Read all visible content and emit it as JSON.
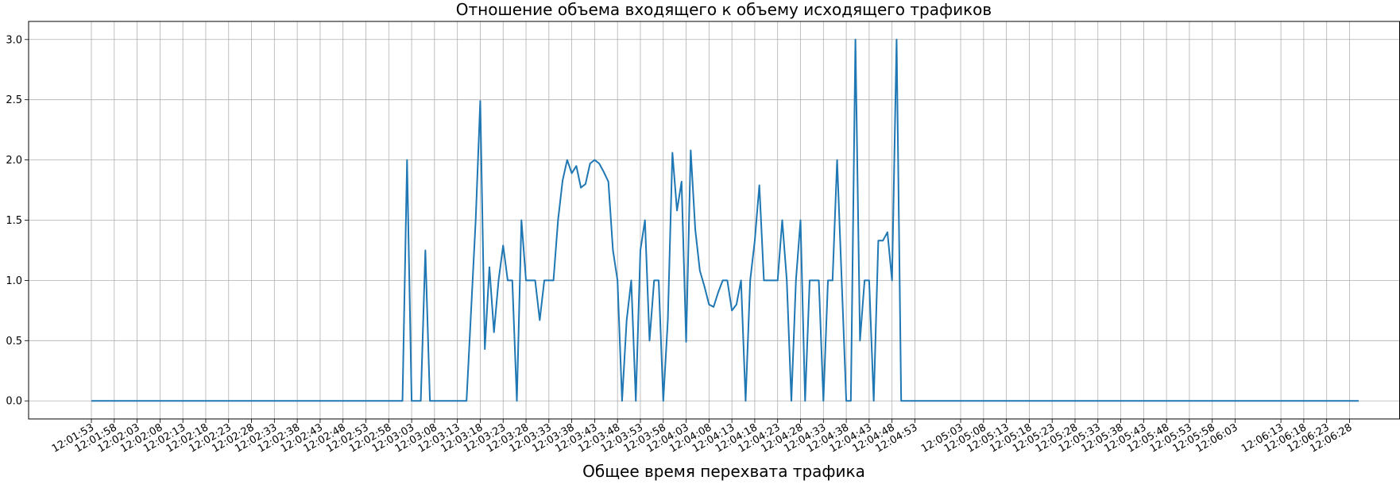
{
  "chart_data": {
    "type": "line",
    "title": "Отношение объема входящего к объему исходящего трафиков",
    "xlabel": "Общее время перехвата трафика",
    "ylabel": "",
    "ylim": [
      -0.15,
      3.15
    ],
    "yticks": [
      0.0,
      0.5,
      1.0,
      1.5,
      2.0,
      2.5,
      3.0
    ],
    "ytick_labels": [
      "0.0",
      "0.5",
      "1.0",
      "1.5",
      "2.0",
      "2.5",
      "3.0"
    ],
    "xtick_labels": [
      "12:01:53",
      "12:01:58",
      "12:02:03",
      "12:02:08",
      "12:02:13",
      "12:02:18",
      "12:02:23",
      "12:02:28",
      "12:02:33",
      "12:02:38",
      "12:02:43",
      "12:02:48",
      "12:02:53",
      "12:02:58",
      "12:03:03",
      "12:03:08",
      "12:03:13",
      "12:03:18",
      "12:03:23",
      "12:03:28",
      "12:03:33",
      "12:03:38",
      "12:03:43",
      "12:03:48",
      "12:03:53",
      "12:03:58",
      "12:04:03",
      "12:04:08",
      "12:04:13",
      "12:04:18",
      "12:04:23",
      "12:04:28",
      "12:04:33",
      "12:04:38",
      "12:04:43",
      "12:04:48",
      "12:04:53",
      "12:05:03",
      "12:05:08",
      "12:05:13",
      "12:05:18",
      "12:05:23",
      "12:05:28",
      "12:05:33",
      "12:05:38",
      "12:05:43",
      "12:05:48",
      "12:05:53",
      "12:05:58",
      "12:06:03",
      "12:06:13",
      "12:06:18",
      "12:06:23",
      "12:06:28"
    ],
    "grid": true,
    "line_color": "#1f77b4",
    "series": [
      {
        "x": [
          "12:01:53",
          "12:03:01",
          "12:03:02",
          "12:03:03",
          "12:03:05",
          "12:03:06",
          "12:03:07",
          "12:03:15",
          "12:03:17",
          "12:03:18",
          "12:03:19",
          "12:03:20",
          "12:03:21",
          "12:03:22",
          "12:03:23",
          "12:03:24",
          "12:03:25",
          "12:03:26",
          "12:03:27",
          "12:03:28",
          "12:03:29",
          "12:03:30",
          "12:03:31",
          "12:03:32",
          "12:03:33",
          "12:03:34",
          "12:03:35",
          "12:03:36",
          "12:03:37",
          "12:03:38",
          "12:03:39",
          "12:03:40",
          "12:03:41",
          "12:03:42",
          "12:03:43",
          "12:03:44",
          "12:03:45",
          "12:03:46",
          "12:03:47",
          "12:03:48",
          "12:03:49",
          "12:03:50",
          "12:03:51",
          "12:03:52",
          "12:03:53",
          "12:03:54",
          "12:03:55",
          "12:03:56",
          "12:03:57",
          "12:03:58",
          "12:03:59",
          "12:04:00",
          "12:04:01",
          "12:04:02",
          "12:04:03",
          "12:04:04",
          "12:04:05",
          "12:04:06",
          "12:04:07",
          "12:04:08",
          "12:04:09",
          "12:04:10",
          "12:04:11",
          "12:04:12",
          "12:04:13",
          "12:04:14",
          "12:04:15",
          "12:04:16",
          "12:04:17",
          "12:04:18",
          "12:04:19",
          "12:04:20",
          "12:04:21",
          "12:04:22",
          "12:04:23",
          "12:04:24",
          "12:04:25",
          "12:04:26",
          "12:04:27",
          "12:04:28",
          "12:04:29",
          "12:04:30",
          "12:04:31",
          "12:04:32",
          "12:04:33",
          "12:04:34",
          "12:04:35",
          "12:04:36",
          "12:04:37",
          "12:04:38",
          "12:04:39",
          "12:04:40",
          "12:04:41",
          "12:04:42",
          "12:04:43",
          "12:04:44",
          "12:04:45",
          "12:04:46",
          "12:04:47",
          "12:04:48",
          "12:04:49",
          "12:04:50",
          "12:04:51",
          "12:06:30"
        ],
        "values": [
          0,
          0,
          2.0,
          0,
          0,
          1.25,
          0,
          0,
          1.5,
          2.49,
          0.43,
          1.11,
          0.57,
          1.0,
          1.29,
          1.0,
          1.0,
          0,
          1.5,
          1.0,
          1.0,
          1.0,
          0.67,
          1.0,
          1.0,
          1.0,
          1.5,
          1.83,
          2.0,
          1.89,
          1.95,
          1.77,
          1.8,
          1.97,
          2.0,
          1.97,
          1.9,
          1.82,
          1.25,
          1.0,
          0,
          0.67,
          1.0,
          0,
          1.25,
          1.5,
          0.5,
          1.0,
          1.0,
          0,
          0.67,
          2.06,
          1.58,
          1.82,
          0.49,
          2.08,
          1.42,
          1.08,
          0.95,
          0.8,
          0.78,
          0.9,
          1.0,
          1.0,
          0.75,
          0.8,
          1.0,
          0,
          1.0,
          1.33,
          1.79,
          1.0,
          1.0,
          1.0,
          1.0,
          1.5,
          1.0,
          0,
          1.0,
          1.5,
          0,
          1.0,
          1.0,
          1.0,
          0,
          1.0,
          1.0,
          2.0,
          1.0,
          0,
          0,
          3.0,
          0.5,
          1.0,
          1.0,
          0,
          1.33,
          1.33,
          1.4,
          1.0,
          3.0,
          0,
          0,
          0
        ]
      }
    ]
  }
}
